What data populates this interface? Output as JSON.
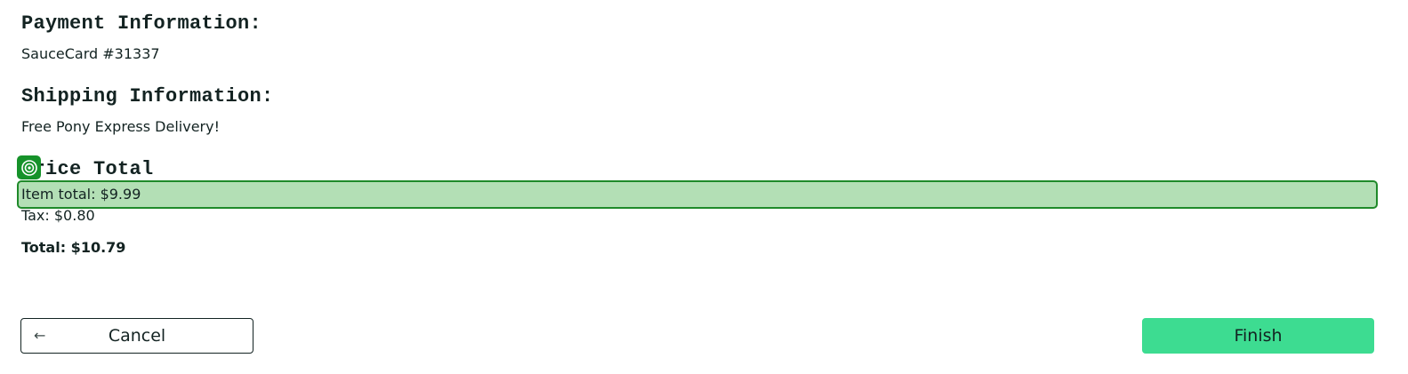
{
  "payment": {
    "label": "Payment Information:",
    "value": "SauceCard #31337"
  },
  "shipping": {
    "label": "Shipping Information:",
    "value": "Free Pony Express Delivery!"
  },
  "price": {
    "label": "Price Total",
    "item_total": "Item total: $9.99",
    "tax": "Tax: $0.80",
    "total": "Total: $10.79"
  },
  "buttons": {
    "cancel_label": "Cancel",
    "finish_label": "Finish"
  },
  "icons": {
    "cancel": "arrow-left-icon",
    "target": "target-icon"
  },
  "colors": {
    "finish_button": "#3ddc91",
    "highlight_fill": "#b3dfb5",
    "highlight_border": "#1f8a2a"
  }
}
